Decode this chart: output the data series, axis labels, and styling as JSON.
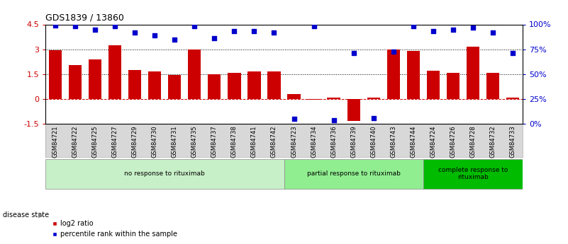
{
  "title": "GDS1839 / 13860",
  "samples": [
    "GSM84721",
    "GSM84722",
    "GSM84725",
    "GSM84727",
    "GSM84729",
    "GSM84730",
    "GSM84731",
    "GSM84735",
    "GSM84737",
    "GSM84738",
    "GSM84741",
    "GSM84742",
    "GSM84723",
    "GSM84734",
    "GSM84736",
    "GSM84739",
    "GSM84740",
    "GSM84743",
    "GSM84744",
    "GSM84724",
    "GSM84726",
    "GSM84728",
    "GSM84732",
    "GSM84733"
  ],
  "log2_ratio": [
    2.95,
    2.05,
    2.4,
    3.25,
    1.75,
    1.65,
    1.45,
    3.0,
    1.5,
    1.6,
    1.65,
    1.65,
    0.3,
    -0.05,
    0.1,
    -1.3,
    0.1,
    3.0,
    2.9,
    1.7,
    1.6,
    3.15,
    1.6,
    0.1
  ],
  "percentile": [
    99,
    98,
    95,
    98,
    92,
    89,
    85,
    98,
    86,
    93,
    93,
    92,
    5,
    98,
    4,
    71,
    6,
    73,
    98,
    93,
    95,
    97,
    92,
    71
  ],
  "groups": [
    {
      "label": "no response to rituximab",
      "start": 0,
      "end": 12,
      "color": "#c8f0c8"
    },
    {
      "label": "partial response to rituximab",
      "start": 12,
      "end": 19,
      "color": "#90ee90"
    },
    {
      "label": "complete response to\nrituximab",
      "start": 19,
      "end": 24,
      "color": "#00bb00"
    }
  ],
  "bar_color": "#cc0000",
  "dot_color": "#0000cc",
  "ylim_left": [
    -1.5,
    4.5
  ],
  "ylim_right": [
    0,
    100
  ],
  "yticks_left": [
    -1.5,
    0.0,
    1.5,
    3.0,
    4.5
  ],
  "yticklabels_left": [
    "-1.5",
    "0",
    "1.5",
    "3",
    "4.5"
  ],
  "yticks_right": [
    0,
    25,
    50,
    75,
    100
  ],
  "yticklabels_right": [
    "0%",
    "25%",
    "50%",
    "75%",
    "100%"
  ],
  "hlines": [
    0.0,
    1.5,
    3.0
  ],
  "hline_styles": [
    "--",
    ":",
    ":"
  ],
  "hline_colors": [
    "#cc0000",
    "black",
    "black"
  ],
  "bg_color": "#ffffff",
  "xticklabel_bg": "#d8d8d8"
}
